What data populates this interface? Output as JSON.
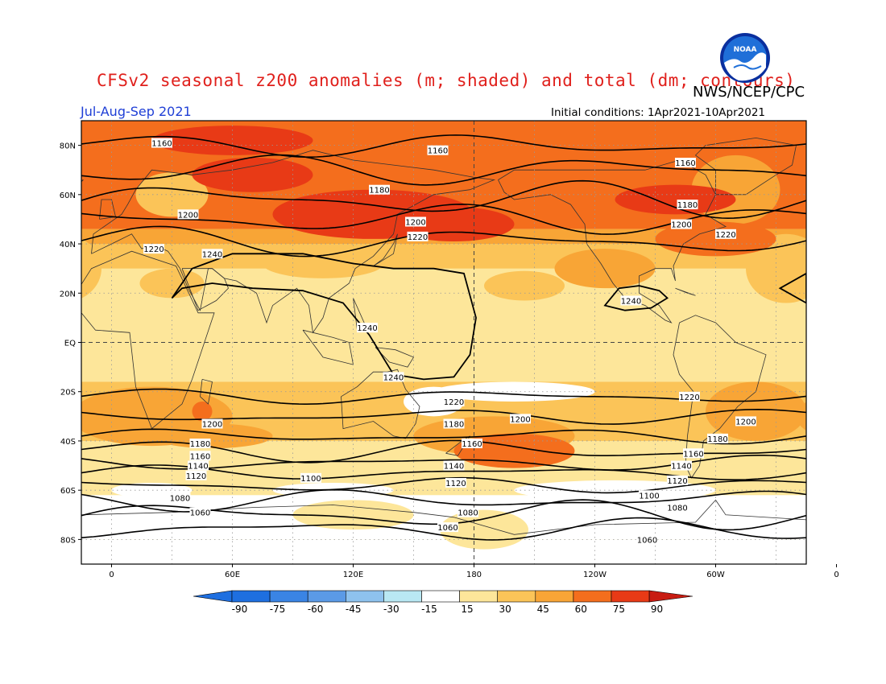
{
  "title": "CFSv2 seasonal z200 anomalies (m; shaded) and total (dm; contours)",
  "agency": "NWS/NCEP/CPC",
  "period": "Jul-Aug-Sep 2021",
  "initial_conditions": "Initial conditions: 1Apr2021-10Apr2021",
  "logo_text": "NOAA",
  "colors": {
    "neg90": "#1e6fe0",
    "neg75": "#3a84e4",
    "neg60": "#5b9ae6",
    "neg45": "#8ec2ee",
    "neg30": "#b9e8f3",
    "neg15": "#ffffff",
    "pos15": "#fde69a",
    "pos30": "#fbc458",
    "pos45": "#f8a536",
    "pos60": "#f46e1d",
    "pos75": "#e83a16",
    "pos90": "#c81c12"
  },
  "map": {
    "lat_tick_labels": [
      "80N",
      "60N",
      "40N",
      "20N",
      "EQ",
      "20S",
      "40S",
      "60S",
      "80S"
    ],
    "lon_tick_labels": [
      "0",
      "60E",
      "120E",
      "180",
      "120W",
      "60W",
      "0"
    ]
  },
  "contours": {
    "labels": [
      {
        "text": "1160",
        "lon": 25,
        "lat": 81
      },
      {
        "text": "1160",
        "lon": 162,
        "lat": 78
      },
      {
        "text": "1160",
        "lon": 285,
        "lat": 73
      },
      {
        "text": "1180",
        "lon": 133,
        "lat": 62
      },
      {
        "text": "1180",
        "lon": 286,
        "lat": 56
      },
      {
        "text": "1200",
        "lon": 38,
        "lat": 52
      },
      {
        "text": "1200",
        "lon": 151,
        "lat": 49
      },
      {
        "text": "1200",
        "lon": 283,
        "lat": 48
      },
      {
        "text": "1220",
        "lon": 21,
        "lat": 38
      },
      {
        "text": "1220",
        "lon": 152,
        "lat": 43
      },
      {
        "text": "1220",
        "lon": 305,
        "lat": 44
      },
      {
        "text": "1240",
        "lon": 50,
        "lat": 36
      },
      {
        "text": "1240",
        "lon": 127,
        "lat": 6
      },
      {
        "text": "1240",
        "lon": 140,
        "lat": -14
      },
      {
        "text": "1240",
        "lon": 258,
        "lat": 17
      },
      {
        "text": "1220",
        "lon": 170,
        "lat": -24
      },
      {
        "text": "1220",
        "lon": 287,
        "lat": -22
      },
      {
        "text": "1200",
        "lon": 50,
        "lat": -33
      },
      {
        "text": "1200",
        "lon": 203,
        "lat": -31
      },
      {
        "text": "1200",
        "lon": 315,
        "lat": -32
      },
      {
        "text": "1180",
        "lon": 44,
        "lat": -41
      },
      {
        "text": "1180",
        "lon": 170,
        "lat": -33
      },
      {
        "text": "1180",
        "lon": 301,
        "lat": -39
      },
      {
        "text": "1160",
        "lon": 44,
        "lat": -46
      },
      {
        "text": "1160",
        "lon": 179,
        "lat": -41
      },
      {
        "text": "1160",
        "lon": 289,
        "lat": -45
      },
      {
        "text": "1140",
        "lon": 43,
        "lat": -50
      },
      {
        "text": "1140",
        "lon": 170,
        "lat": -50
      },
      {
        "text": "1140",
        "lon": 283,
        "lat": -50
      },
      {
        "text": "1120",
        "lon": 42,
        "lat": -54
      },
      {
        "text": "1120",
        "lon": 171,
        "lat": -57
      },
      {
        "text": "1120",
        "lon": 281,
        "lat": -56
      },
      {
        "text": "1100",
        "lon": 99,
        "lat": -55
      },
      {
        "text": "1100",
        "lon": 267,
        "lat": -62
      },
      {
        "text": "1080",
        "lon": 34,
        "lat": -63
      },
      {
        "text": "1080",
        "lon": 177,
        "lat": -69
      },
      {
        "text": "1080",
        "lon": 281,
        "lat": -67
      },
      {
        "text": "1060",
        "lon": 44,
        "lat": -69
      },
      {
        "text": "1060",
        "lon": 167,
        "lat": -75
      },
      {
        "text": "1060",
        "lon": 266,
        "lat": -80
      }
    ]
  },
  "colorbar": {
    "ticks": [
      "-90",
      "-75",
      "-60",
      "-45",
      "-30",
      "-15",
      "15",
      "30",
      "45",
      "60",
      "75",
      "90"
    ]
  }
}
